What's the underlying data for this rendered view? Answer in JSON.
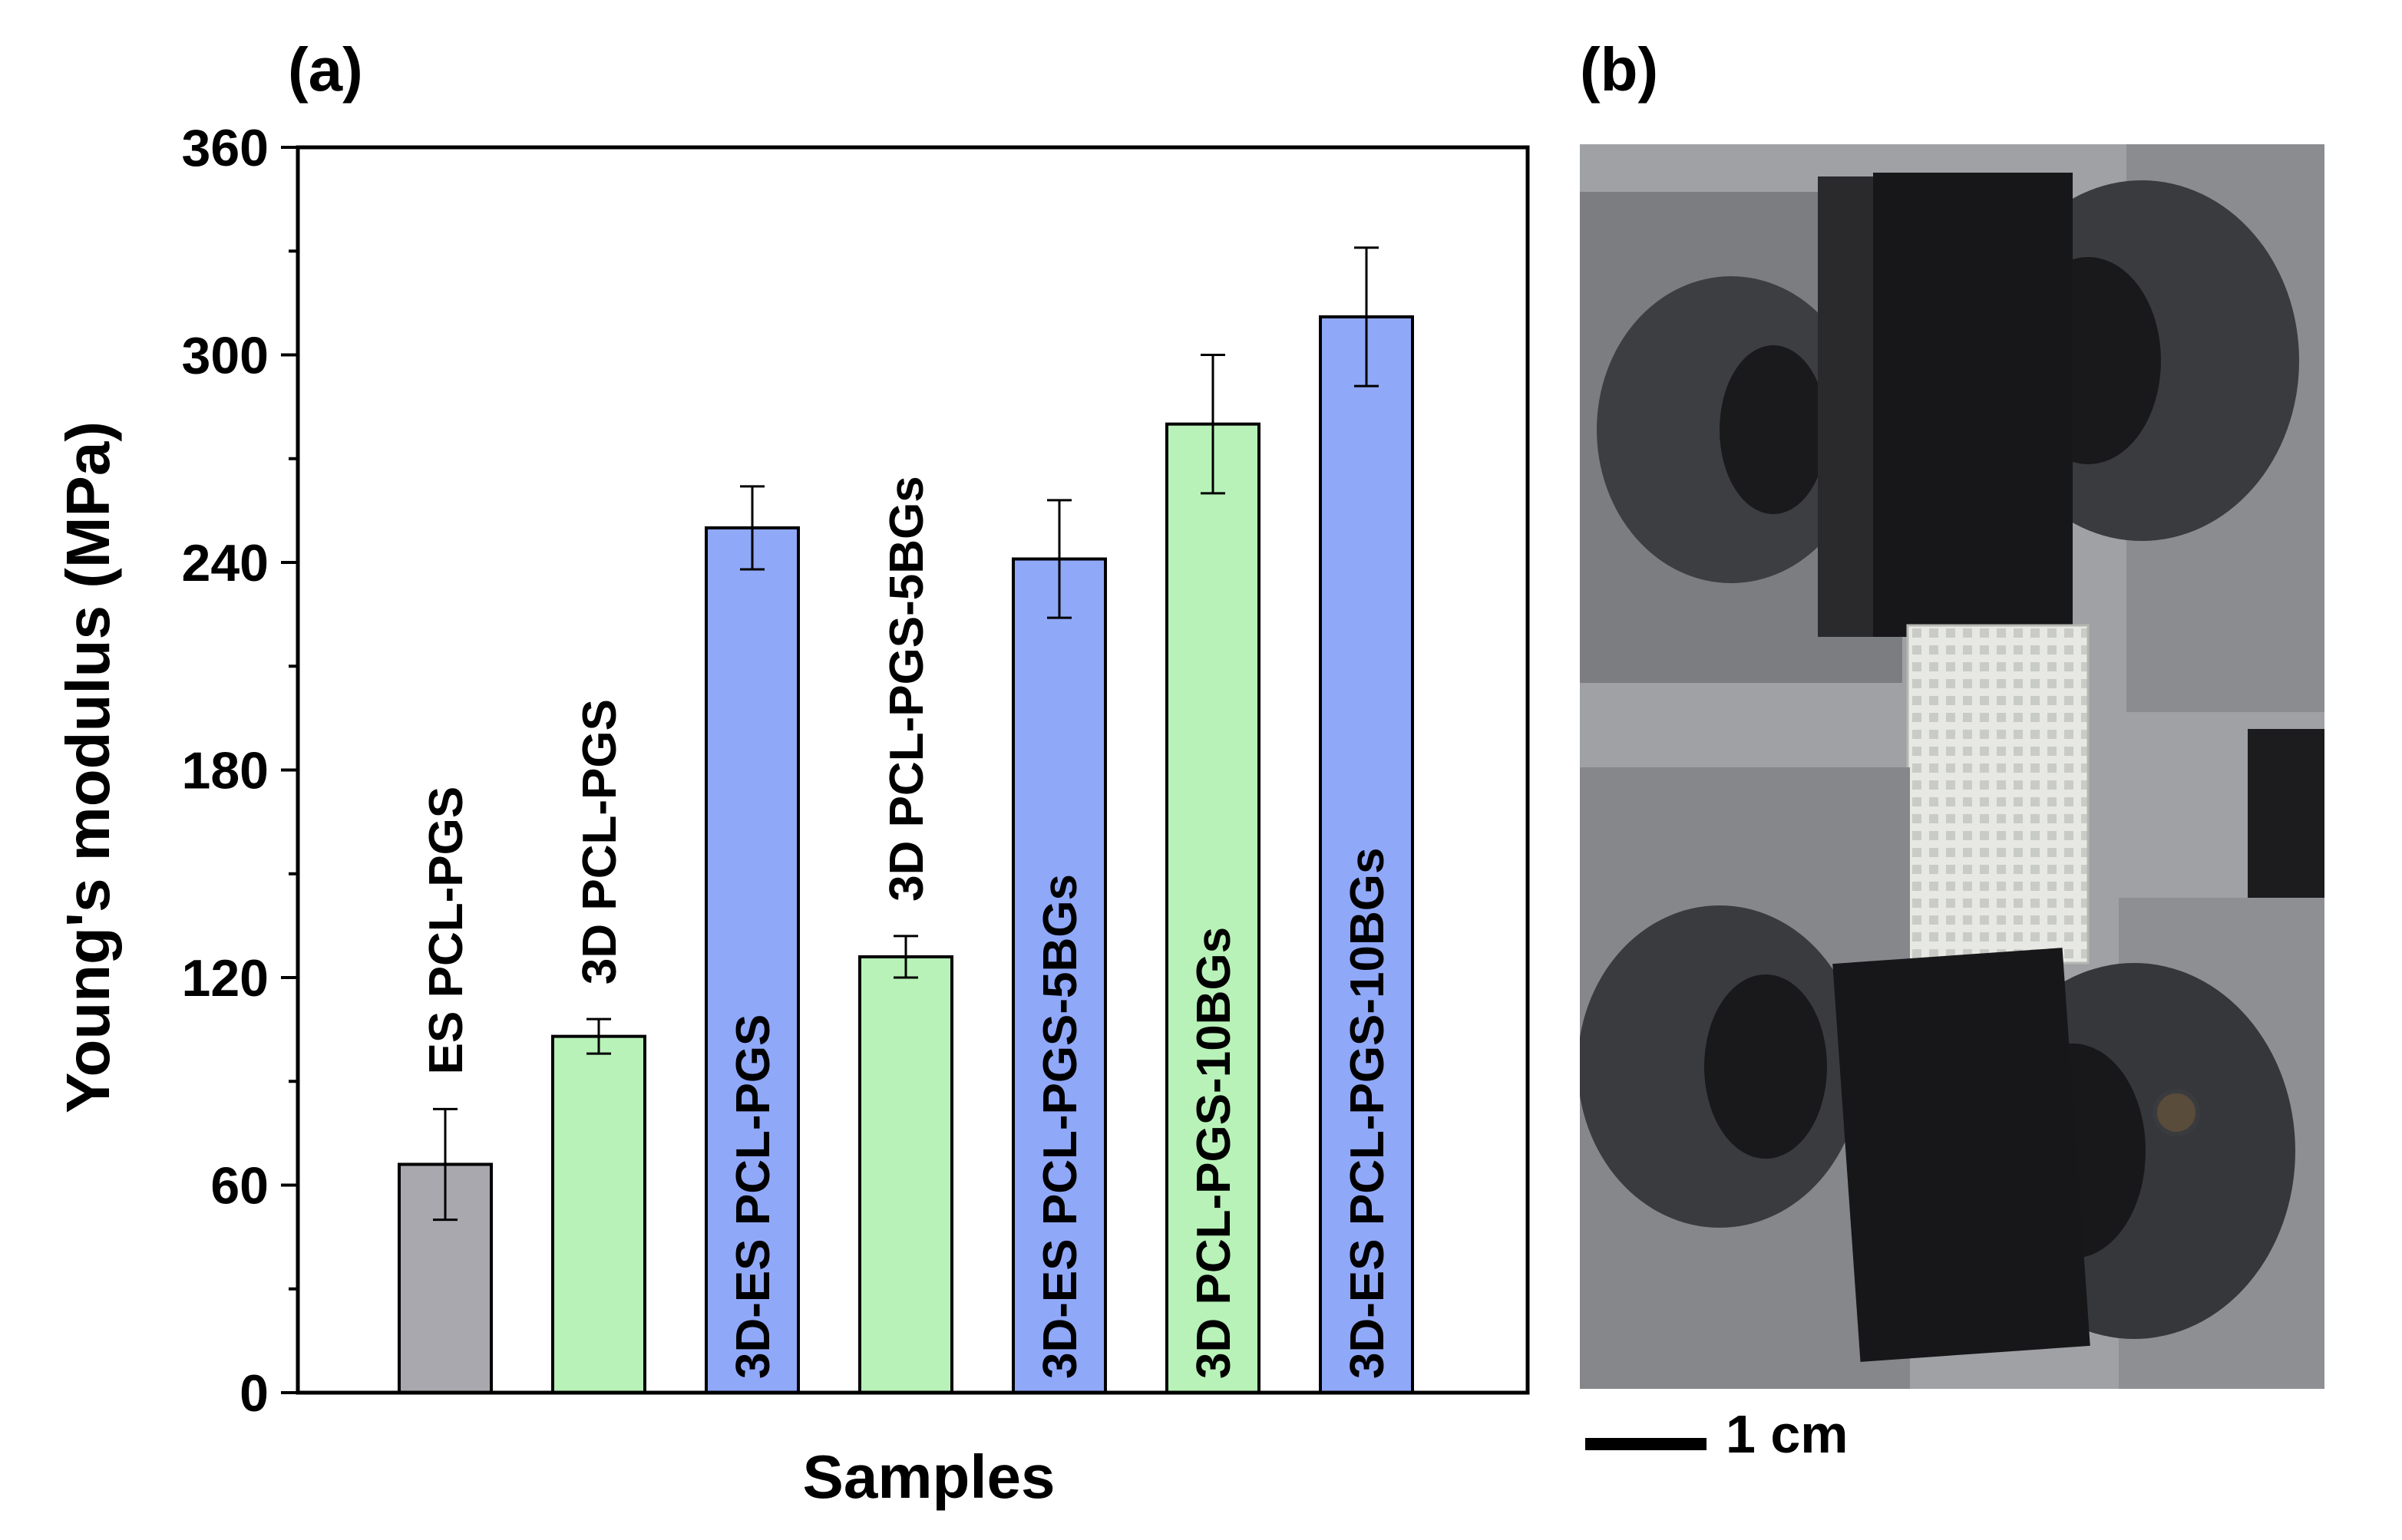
{
  "panels": {
    "a_label": "(a)",
    "b_label": "(b)"
  },
  "chart_data": {
    "type": "bar",
    "ylabel": "Young's modulus (MPa)",
    "xlabel": "Samples",
    "ylim": [
      0,
      360
    ],
    "yticks": [
      0,
      60,
      120,
      180,
      240,
      300,
      360
    ],
    "grid": false,
    "categories": [
      "ES PCL-PGS",
      "3D PCL-PGS",
      "3D-ES PCL-PGS",
      "3D PCL-PGS-5BGs",
      "3D-ES PCL-PGS-5BGs",
      "3D PCL-PGS-10BGs",
      "3D-ES PCL-PGS-10BGs"
    ],
    "values": [
      66,
      103,
      250,
      126,
      241,
      280,
      311
    ],
    "errors": [
      16,
      5,
      12,
      6,
      17,
      20,
      20
    ],
    "colors": [
      "#a8a8ae",
      "#b8f2b8",
      "#90a8f8",
      "#b8f2b8",
      "#90a8f8",
      "#b8f2b8",
      "#90a8f8"
    ],
    "label_inside": [
      false,
      false,
      true,
      false,
      true,
      true,
      true
    ]
  },
  "photo": {
    "scale_bar_label": "1 cm",
    "colors": {
      "background": "#9fa1a4",
      "grip": "#171719",
      "fixture": "#7b7d80",
      "specimen": "#e7e8e3"
    }
  }
}
